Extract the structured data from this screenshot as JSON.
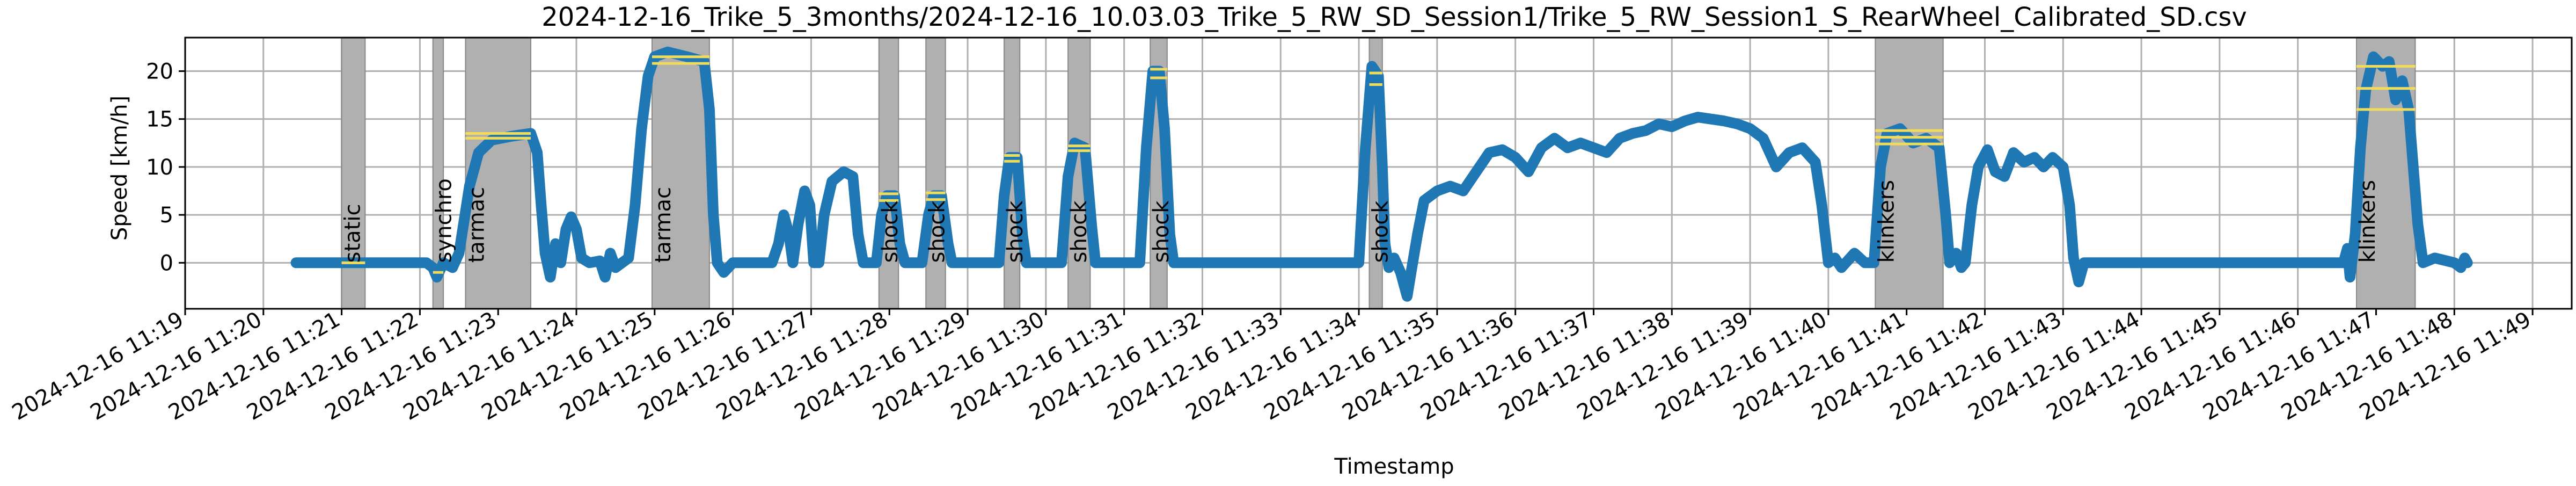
{
  "chart_data": {
    "type": "line",
    "title": "2024-12-16_Trike_5_3months/2024-12-16_10.03.03_Trike_5_RW_SD_Session1/Trike_5_RW_Session1_S_RearWheel_Calibrated_SD.csv",
    "xlabel": "Timestamp",
    "ylabel": "Speed [km/h]",
    "xlim": [
      "2024-12-16 11:19:00",
      "2024-12-16 11:49:30"
    ],
    "ylim": [
      -4.8,
      23.5
    ],
    "grid": true,
    "colors": {
      "series": "#1f77b4",
      "segment_fill": "#b0b0b0",
      "segment_edge": "#888888",
      "level_line": "#f0dc5a",
      "grid": "#b0b0b0"
    },
    "x_ticks": [
      "2024-12-16 11:19",
      "2024-12-16 11:20",
      "2024-12-16 11:21",
      "2024-12-16 11:22",
      "2024-12-16 11:23",
      "2024-12-16 11:24",
      "2024-12-16 11:25",
      "2024-12-16 11:26",
      "2024-12-16 11:27",
      "2024-12-16 11:28",
      "2024-12-16 11:29",
      "2024-12-16 11:30",
      "2024-12-16 11:31",
      "2024-12-16 11:32",
      "2024-12-16 11:33",
      "2024-12-16 11:34",
      "2024-12-16 11:35",
      "2024-12-16 11:36",
      "2024-12-16 11:37",
      "2024-12-16 11:38",
      "2024-12-16 11:39",
      "2024-12-16 11:40",
      "2024-12-16 11:41",
      "2024-12-16 11:42",
      "2024-12-16 11:43",
      "2024-12-16 11:44",
      "2024-12-16 11:45",
      "2024-12-16 11:46",
      "2024-12-16 11:47",
      "2024-12-16 11:48",
      "2024-12-16 11:49"
    ],
    "y_ticks": [
      0,
      5,
      10,
      15,
      20
    ],
    "segments": [
      {
        "label": "static",
        "start": "2024-12-16 11:21:00",
        "end": "2024-12-16 11:21:18",
        "levels": [
          0
        ]
      },
      {
        "label": "synchro",
        "start": "2024-12-16 11:22:10",
        "end": "2024-12-16 11:22:18",
        "levels": [
          -1
        ]
      },
      {
        "label": "tarmac",
        "start": "2024-12-16 11:22:35",
        "end": "2024-12-16 11:23:25",
        "levels": [
          13.5,
          13.0
        ]
      },
      {
        "label": "tarmac",
        "start": "2024-12-16 11:24:58",
        "end": "2024-12-16 11:25:42",
        "levels": [
          21.5,
          20.8
        ]
      },
      {
        "label": "shock",
        "start": "2024-12-16 11:27:52",
        "end": "2024-12-16 11:28:07",
        "levels": [
          7.2,
          6.5
        ]
      },
      {
        "label": "shock",
        "start": "2024-12-16 11:28:28",
        "end": "2024-12-16 11:28:43",
        "levels": [
          7.3,
          6.6
        ]
      },
      {
        "label": "shock",
        "start": "2024-12-16 11:29:28",
        "end": "2024-12-16 11:29:40",
        "levels": [
          11.2,
          10.6
        ]
      },
      {
        "label": "shock",
        "start": "2024-12-16 11:30:17",
        "end": "2024-12-16 11:30:34",
        "levels": [
          12.2,
          11.7
        ]
      },
      {
        "label": "shock",
        "start": "2024-12-16 11:31:20",
        "end": "2024-12-16 11:31:33",
        "levels": [
          20.2,
          19.3
        ]
      },
      {
        "label": "shock",
        "start": "2024-12-16 11:34:08",
        "end": "2024-12-16 11:34:18",
        "levels": [
          19.8,
          18.6
        ]
      },
      {
        "label": "klinkers",
        "start": "2024-12-16 11:40:36",
        "end": "2024-12-16 11:41:28",
        "levels": [
          13.8,
          13.1,
          12.4
        ]
      },
      {
        "label": "klinkers",
        "start": "2024-12-16 11:46:45",
        "end": "2024-12-16 11:47:30",
        "levels": [
          20.5,
          18.2,
          16.0
        ]
      }
    ],
    "series": [
      {
        "points": [
          [
            "2024-12-16 11:20:25",
            0.0
          ],
          [
            "2024-12-16 11:22:05",
            0.0
          ],
          [
            "2024-12-16 11:22:10",
            -0.5
          ],
          [
            "2024-12-16 11:22:13",
            -1.5
          ],
          [
            "2024-12-16 11:22:18",
            0.0
          ],
          [
            "2024-12-16 11:22:25",
            -0.5
          ],
          [
            "2024-12-16 11:22:30",
            1.0
          ],
          [
            "2024-12-16 11:22:38",
            8.0
          ],
          [
            "2024-12-16 11:22:45",
            11.5
          ],
          [
            "2024-12-16 11:22:55",
            12.8
          ],
          [
            "2024-12-16 11:23:10",
            13.2
          ],
          [
            "2024-12-16 11:23:25",
            13.5
          ],
          [
            "2024-12-16 11:23:30",
            11.5
          ],
          [
            "2024-12-16 11:23:33",
            6.0
          ],
          [
            "2024-12-16 11:23:36",
            1.0
          ],
          [
            "2024-12-16 11:23:40",
            -1.5
          ],
          [
            "2024-12-16 11:23:44",
            2.0
          ],
          [
            "2024-12-16 11:23:48",
            0.0
          ],
          [
            "2024-12-16 11:23:52",
            3.5
          ],
          [
            "2024-12-16 11:23:56",
            4.8
          ],
          [
            "2024-12-16 11:24:00",
            3.5
          ],
          [
            "2024-12-16 11:24:04",
            0.5
          ],
          [
            "2024-12-16 11:24:10",
            0.0
          ],
          [
            "2024-12-16 11:24:18",
            0.2
          ],
          [
            "2024-12-16 11:24:22",
            -1.5
          ],
          [
            "2024-12-16 11:24:26",
            1.0
          ],
          [
            "2024-12-16 11:24:30",
            -0.5
          ],
          [
            "2024-12-16 11:24:35",
            0.0
          ],
          [
            "2024-12-16 11:24:40",
            0.5
          ],
          [
            "2024-12-16 11:24:45",
            6.0
          ],
          [
            "2024-12-16 11:24:50",
            14.0
          ],
          [
            "2024-12-16 11:24:55",
            19.5
          ],
          [
            "2024-12-16 11:25:00",
            21.5
          ],
          [
            "2024-12-16 11:25:10",
            22.0
          ],
          [
            "2024-12-16 11:25:25",
            21.5
          ],
          [
            "2024-12-16 11:25:38",
            21.0
          ],
          [
            "2024-12-16 11:25:42",
            16.0
          ],
          [
            "2024-12-16 11:25:45",
            5.0
          ],
          [
            "2024-12-16 11:25:48",
            0.0
          ],
          [
            "2024-12-16 11:25:53",
            -1.0
          ],
          [
            "2024-12-16 11:26:00",
            0.0
          ],
          [
            "2024-12-16 11:26:30",
            0.0
          ],
          [
            "2024-12-16 11:26:35",
            2.0
          ],
          [
            "2024-12-16 11:26:39",
            5.0
          ],
          [
            "2024-12-16 11:26:43",
            3.0
          ],
          [
            "2024-12-16 11:26:46",
            0.0
          ],
          [
            "2024-12-16 11:26:50",
            4.0
          ],
          [
            "2024-12-16 11:26:55",
            7.5
          ],
          [
            "2024-12-16 11:26:59",
            6.0
          ],
          [
            "2024-12-16 11:27:02",
            0.0
          ],
          [
            "2024-12-16 11:27:06",
            0.0
          ],
          [
            "2024-12-16 11:27:10",
            5.0
          ],
          [
            "2024-12-16 11:27:16",
            8.5
          ],
          [
            "2024-12-16 11:27:25",
            9.5
          ],
          [
            "2024-12-16 11:27:32",
            9.0
          ],
          [
            "2024-12-16 11:27:36",
            3.0
          ],
          [
            "2024-12-16 11:27:40",
            0.0
          ],
          [
            "2024-12-16 11:27:50",
            0.0
          ],
          [
            "2024-12-16 11:27:54",
            5.0
          ],
          [
            "2024-12-16 11:27:58",
            7.0
          ],
          [
            "2024-12-16 11:28:04",
            7.0
          ],
          [
            "2024-12-16 11:28:08",
            2.0
          ],
          [
            "2024-12-16 11:28:12",
            0.0
          ],
          [
            "2024-12-16 11:28:25",
            0.0
          ],
          [
            "2024-12-16 11:28:30",
            5.0
          ],
          [
            "2024-12-16 11:28:34",
            7.0
          ],
          [
            "2024-12-16 11:28:40",
            7.0
          ],
          [
            "2024-12-16 11:28:45",
            2.0
          ],
          [
            "2024-12-16 11:28:48",
            0.0
          ],
          [
            "2024-12-16 11:29:24",
            0.0
          ],
          [
            "2024-12-16 11:29:28",
            7.0
          ],
          [
            "2024-12-16 11:29:32",
            11.0
          ],
          [
            "2024-12-16 11:29:38",
            11.0
          ],
          [
            "2024-12-16 11:29:42",
            3.0
          ],
          [
            "2024-12-16 11:29:45",
            0.0
          ],
          [
            "2024-12-16 11:30:12",
            0.0
          ],
          [
            "2024-12-16 11:30:17",
            9.0
          ],
          [
            "2024-12-16 11:30:22",
            12.5
          ],
          [
            "2024-12-16 11:30:30",
            12.0
          ],
          [
            "2024-12-16 11:30:35",
            4.0
          ],
          [
            "2024-12-16 11:30:38",
            0.0
          ],
          [
            "2024-12-16 11:31:12",
            0.0
          ],
          [
            "2024-12-16 11:31:17",
            12.0
          ],
          [
            "2024-12-16 11:31:22",
            20.0
          ],
          [
            "2024-12-16 11:31:27",
            20.0
          ],
          [
            "2024-12-16 11:31:31",
            14.0
          ],
          [
            "2024-12-16 11:31:35",
            3.0
          ],
          [
            "2024-12-16 11:31:38",
            0.0
          ],
          [
            "2024-12-16 11:34:00",
            0.0
          ],
          [
            "2024-12-16 11:34:05",
            12.0
          ],
          [
            "2024-12-16 11:34:10",
            20.5
          ],
          [
            "2024-12-16 11:34:15",
            19.5
          ],
          [
            "2024-12-16 11:34:18",
            10.0
          ],
          [
            "2024-12-16 11:34:20",
            2.0
          ],
          [
            "2024-12-16 11:34:23",
            -0.5
          ],
          [
            "2024-12-16 11:34:27",
            0.5
          ],
          [
            "2024-12-16 11:34:32",
            -1.0
          ],
          [
            "2024-12-16 11:34:37",
            -3.5
          ],
          [
            "2024-12-16 11:34:40",
            -1.0
          ],
          [
            "2024-12-16 11:34:45",
            3.0
          ],
          [
            "2024-12-16 11:34:50",
            6.5
          ],
          [
            "2024-12-16 11:35:00",
            7.5
          ],
          [
            "2024-12-16 11:35:10",
            8.0
          ],
          [
            "2024-12-16 11:35:20",
            7.5
          ],
          [
            "2024-12-16 11:35:30",
            9.5
          ],
          [
            "2024-12-16 11:35:40",
            11.5
          ],
          [
            "2024-12-16 11:35:50",
            11.8
          ],
          [
            "2024-12-16 11:36:00",
            11.0
          ],
          [
            "2024-12-16 11:36:10",
            9.5
          ],
          [
            "2024-12-16 11:36:20",
            12.0
          ],
          [
            "2024-12-16 11:36:30",
            13.0
          ],
          [
            "2024-12-16 11:36:40",
            12.0
          ],
          [
            "2024-12-16 11:36:50",
            12.5
          ],
          [
            "2024-12-16 11:37:00",
            12.0
          ],
          [
            "2024-12-16 11:37:10",
            11.5
          ],
          [
            "2024-12-16 11:37:20",
            13.0
          ],
          [
            "2024-12-16 11:37:30",
            13.5
          ],
          [
            "2024-12-16 11:37:40",
            13.8
          ],
          [
            "2024-12-16 11:37:50",
            14.5
          ],
          [
            "2024-12-16 11:38:00",
            14.2
          ],
          [
            "2024-12-16 11:38:10",
            14.8
          ],
          [
            "2024-12-16 11:38:20",
            15.2
          ],
          [
            "2024-12-16 11:38:30",
            15.0
          ],
          [
            "2024-12-16 11:38:40",
            14.8
          ],
          [
            "2024-12-16 11:38:50",
            14.5
          ],
          [
            "2024-12-16 11:39:00",
            14.0
          ],
          [
            "2024-12-16 11:39:10",
            13.0
          ],
          [
            "2024-12-16 11:39:20",
            10.0
          ],
          [
            "2024-12-16 11:39:30",
            11.5
          ],
          [
            "2024-12-16 11:39:40",
            12.0
          ],
          [
            "2024-12-16 11:39:50",
            10.5
          ],
          [
            "2024-12-16 11:39:55",
            6.0
          ],
          [
            "2024-12-16 11:40:00",
            0.0
          ],
          [
            "2024-12-16 11:40:05",
            0.5
          ],
          [
            "2024-12-16 11:40:10",
            -0.5
          ],
          [
            "2024-12-16 11:40:20",
            1.0
          ],
          [
            "2024-12-16 11:40:28",
            0.0
          ],
          [
            "2024-12-16 11:40:35",
            0.0
          ],
          [
            "2024-12-16 11:40:40",
            10.0
          ],
          [
            "2024-12-16 11:40:45",
            13.5
          ],
          [
            "2024-12-16 11:40:55",
            14.0
          ],
          [
            "2024-12-16 11:41:05",
            12.5
          ],
          [
            "2024-12-16 11:41:15",
            13.0
          ],
          [
            "2024-12-16 11:41:25",
            12.0
          ],
          [
            "2024-12-16 11:41:30",
            5.0
          ],
          [
            "2024-12-16 11:41:33",
            0.0
          ],
          [
            "2024-12-16 11:41:38",
            1.0
          ],
          [
            "2024-12-16 11:41:42",
            -0.5
          ],
          [
            "2024-12-16 11:41:45",
            0.0
          ],
          [
            "2024-12-16 11:41:50",
            6.0
          ],
          [
            "2024-12-16 11:41:55",
            10.0
          ],
          [
            "2024-12-16 11:42:02",
            11.8
          ],
          [
            "2024-12-16 11:42:08",
            9.5
          ],
          [
            "2024-12-16 11:42:15",
            9.0
          ],
          [
            "2024-12-16 11:42:22",
            11.5
          ],
          [
            "2024-12-16 11:42:30",
            10.5
          ],
          [
            "2024-12-16 11:42:38",
            11.0
          ],
          [
            "2024-12-16 11:42:45",
            10.0
          ],
          [
            "2024-12-16 11:42:52",
            11.0
          ],
          [
            "2024-12-16 11:43:00",
            10.0
          ],
          [
            "2024-12-16 11:43:05",
            6.0
          ],
          [
            "2024-12-16 11:43:08",
            0.5
          ],
          [
            "2024-12-16 11:43:12",
            -2.0
          ],
          [
            "2024-12-16 11:43:16",
            0.0
          ],
          [
            "2024-12-16 11:46:35",
            0.0
          ],
          [
            "2024-12-16 11:46:38",
            1.5
          ],
          [
            "2024-12-16 11:46:40",
            -1.5
          ],
          [
            "2024-12-16 11:46:44",
            3.0
          ],
          [
            "2024-12-16 11:46:48",
            12.0
          ],
          [
            "2024-12-16 11:46:52",
            18.0
          ],
          [
            "2024-12-16 11:46:58",
            21.5
          ],
          [
            "2024-12-16 11:47:05",
            20.5
          ],
          [
            "2024-12-16 11:47:10",
            21.0
          ],
          [
            "2024-12-16 11:47:15",
            17.0
          ],
          [
            "2024-12-16 11:47:20",
            19.0
          ],
          [
            "2024-12-16 11:47:25",
            16.0
          ],
          [
            "2024-12-16 11:47:32",
            4.0
          ],
          [
            "2024-12-16 11:47:36",
            0.0
          ],
          [
            "2024-12-16 11:47:45",
            0.5
          ],
          [
            "2024-12-16 11:48:00",
            0.0
          ],
          [
            "2024-12-16 11:48:05",
            -0.5
          ],
          [
            "2024-12-16 11:48:08",
            0.5
          ],
          [
            "2024-12-16 11:48:10",
            0.0
          ]
        ]
      }
    ]
  }
}
